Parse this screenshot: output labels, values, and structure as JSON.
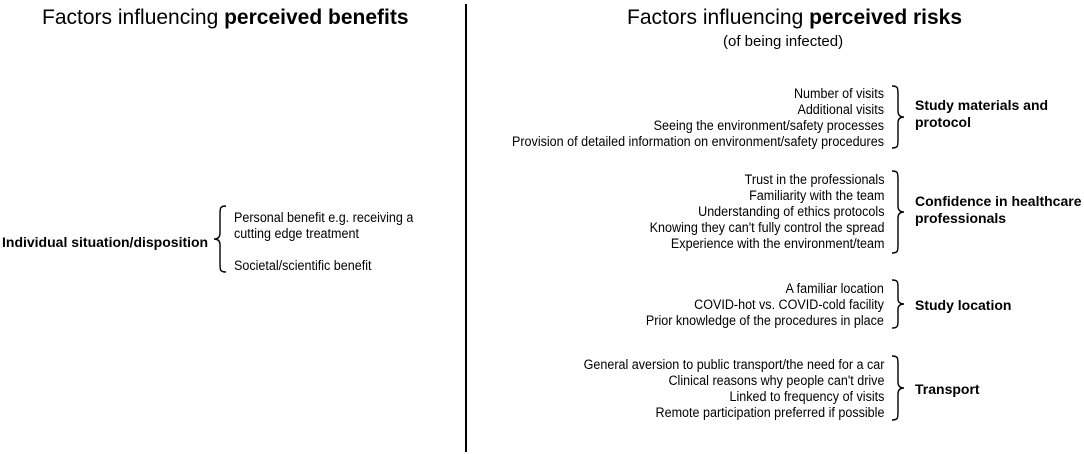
{
  "left_panel": {
    "title_prefix": "Factors influencing ",
    "title_bold": "perceived benefits",
    "category": "Individual situation/disposition",
    "items": [
      "Personal benefit e.g. receiving a",
      "cutting edge treatment",
      "",
      "Societal/scientific benefit"
    ]
  },
  "right_panel": {
    "title_prefix": "Factors influencing ",
    "title_bold": "perceived risks",
    "subtitle": "(of being infected)",
    "groups": [
      {
        "category_lines": [
          "Study materials and",
          "protocol"
        ],
        "items": [
          "Number of visits",
          "Additional visits",
          "Seeing the environment/safety processes",
          "Provision of detailed information on environment/safety procedures"
        ]
      },
      {
        "category_lines": [
          "Confidence in healthcare",
          "professionals"
        ],
        "items": [
          "Trust in the professionals",
          "Familiarity with the team",
          "Understanding of ethics protocols",
          "Knowing they can't fully control the spread",
          "Experience with the environment/team"
        ]
      },
      {
        "category_lines": [
          "Study location"
        ],
        "items": [
          "A familiar location",
          "COVID-hot vs. COVID-cold facility",
          "Prior knowledge of the procedures in place"
        ]
      },
      {
        "category_lines": [
          "Transport"
        ],
        "items": [
          "General aversion to public transport/the need for a car",
          "Clinical reasons why people can't drive",
          "Linked to frequency of visits",
          "Remote participation preferred if possible"
        ]
      }
    ]
  }
}
